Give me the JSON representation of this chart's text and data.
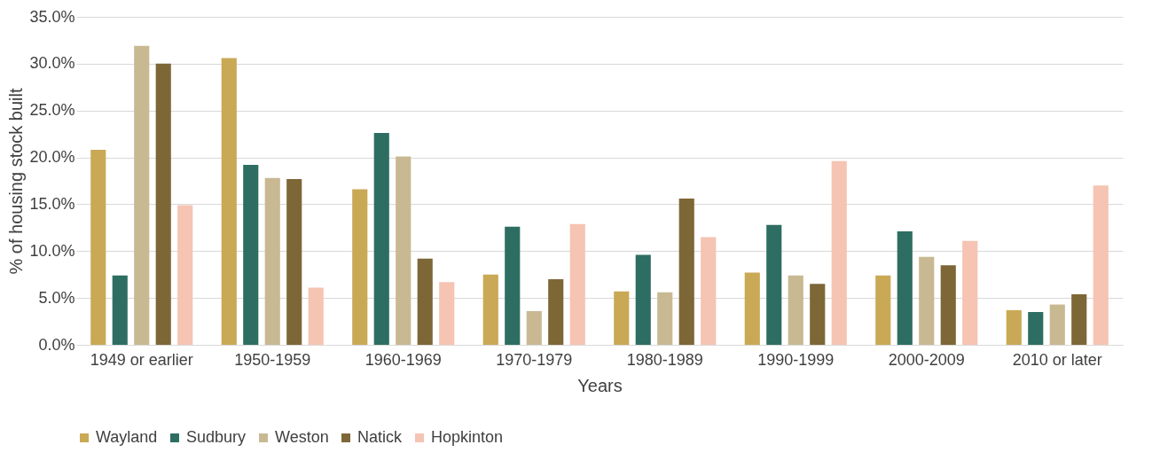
{
  "chart_data": {
    "type": "bar",
    "xlabel": "Years",
    "ylabel": "% of housing stock built",
    "categories": [
      "1949 or earlier",
      "1950-1959",
      "1960-1969",
      "1970-1979",
      "1980-1989",
      "1990-1999",
      "2000-2009",
      "2010 or later"
    ],
    "series": [
      {
        "name": "Wayland",
        "color": "#c9a956",
        "values": [
          20.8,
          30.6,
          16.6,
          7.5,
          5.7,
          7.7,
          7.4,
          3.7
        ]
      },
      {
        "name": "Sudbury",
        "color": "#2e6e62",
        "values": [
          7.4,
          19.2,
          22.6,
          12.6,
          9.6,
          12.8,
          12.1,
          3.5
        ]
      },
      {
        "name": "Weston",
        "color": "#c8b993",
        "values": [
          31.9,
          17.8,
          20.1,
          3.6,
          5.6,
          7.4,
          9.4,
          4.3
        ]
      },
      {
        "name": "Natick",
        "color": "#7e6737",
        "values": [
          30.0,
          17.7,
          9.2,
          7.0,
          15.6,
          6.5,
          8.5,
          5.4
        ]
      },
      {
        "name": "Hopkinton",
        "color": "#f5c4b2",
        "values": [
          14.9,
          6.1,
          6.7,
          12.9,
          11.5,
          19.6,
          11.1,
          17.0
        ]
      }
    ],
    "ylim": [
      0,
      35
    ],
    "yticks": [
      {
        "value": 0,
        "label": "0.0%"
      },
      {
        "value": 5,
        "label": "5.0%"
      },
      {
        "value": 10,
        "label": "10.0%"
      },
      {
        "value": 15,
        "label": "15.0%"
      },
      {
        "value": 20,
        "label": "20.0%"
      },
      {
        "value": 25,
        "label": "25.0%"
      },
      {
        "value": 30,
        "label": "30.0%"
      },
      {
        "value": 35,
        "label": "35.0%"
      }
    ],
    "grid": "y",
    "legend": "bottom"
  }
}
